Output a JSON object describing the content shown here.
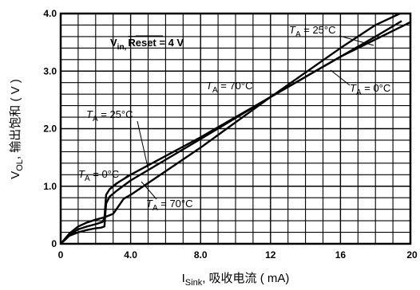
{
  "chart_data": {
    "type": "line",
    "title": "",
    "xlabel": "I_Sink, 吸收电流 ( mA)",
    "ylabel": "V_OL, 输出饱和 ( V )",
    "xlim": [
      0,
      20
    ],
    "ylim": [
      0,
      4.0
    ],
    "x_ticks": [
      "0",
      "4.0",
      "8.0",
      "12",
      "16",
      "20"
    ],
    "y_ticks": [
      "0",
      "1.0",
      "2.0",
      "3.0",
      "4.0"
    ],
    "grid": true,
    "legend": "none",
    "series": [
      {
        "name": "T_A = 25°C",
        "x": [
          0,
          0.5,
          1.0,
          1.5,
          2.0,
          2.2,
          2.4,
          2.5,
          2.6,
          2.8,
          3.2,
          4,
          8,
          12,
          16,
          18,
          19.5
        ],
        "y": [
          0,
          0.16,
          0.25,
          0.3,
          0.34,
          0.36,
          0.38,
          0.45,
          0.85,
          0.95,
          1.05,
          1.2,
          1.85,
          2.55,
          3.25,
          3.6,
          3.87
        ]
      },
      {
        "name": "T_A = 0°C",
        "x": [
          0,
          0.5,
          1.0,
          1.5,
          2.0,
          2.3,
          2.5,
          2.6,
          2.8,
          3.2,
          4,
          8,
          12,
          16,
          18,
          20
        ],
        "y": [
          0,
          0.14,
          0.2,
          0.24,
          0.27,
          0.28,
          0.3,
          0.7,
          0.82,
          0.92,
          1.1,
          1.82,
          2.55,
          3.25,
          3.55,
          3.85
        ]
      },
      {
        "name": "T_A = 70°C",
        "x": [
          0,
          0.5,
          1.0,
          1.5,
          2.0,
          2.5,
          3.0,
          3.3,
          3.6,
          4,
          8,
          12,
          16,
          18,
          19.4
        ],
        "y": [
          0,
          0.18,
          0.3,
          0.37,
          0.42,
          0.46,
          0.52,
          0.65,
          0.78,
          0.85,
          1.67,
          2.55,
          3.4,
          3.8,
          4.0
        ]
      }
    ],
    "annotations": {
      "condition": {
        "main": "V",
        "sub": "in,",
        "overlined": "Reset",
        "rest": " = 4 V"
      },
      "labels": [
        {
          "pre": "T",
          "sub": "A",
          "post": " = 25°C"
        },
        {
          "pre": "T",
          "sub": "A",
          "post": " = 70°C"
        },
        {
          "pre": "T",
          "sub": "A",
          "post": " = 0°C"
        },
        {
          "pre": "T",
          "sub": "A",
          "post": " = 25°C"
        },
        {
          "pre": "T",
          "sub": "A",
          "post": " = 0°C"
        },
        {
          "pre": "T",
          "sub": "A",
          "post": " = 70°C"
        }
      ]
    },
    "axis_label_parts": {
      "y": {
        "main": "V",
        "sub": "OL",
        "rest": ", 输出饱和 ( V )"
      },
      "x": {
        "main": "I",
        "sub": "Sink",
        "rest": ", 吸收电流 ( mA)"
      }
    }
  }
}
